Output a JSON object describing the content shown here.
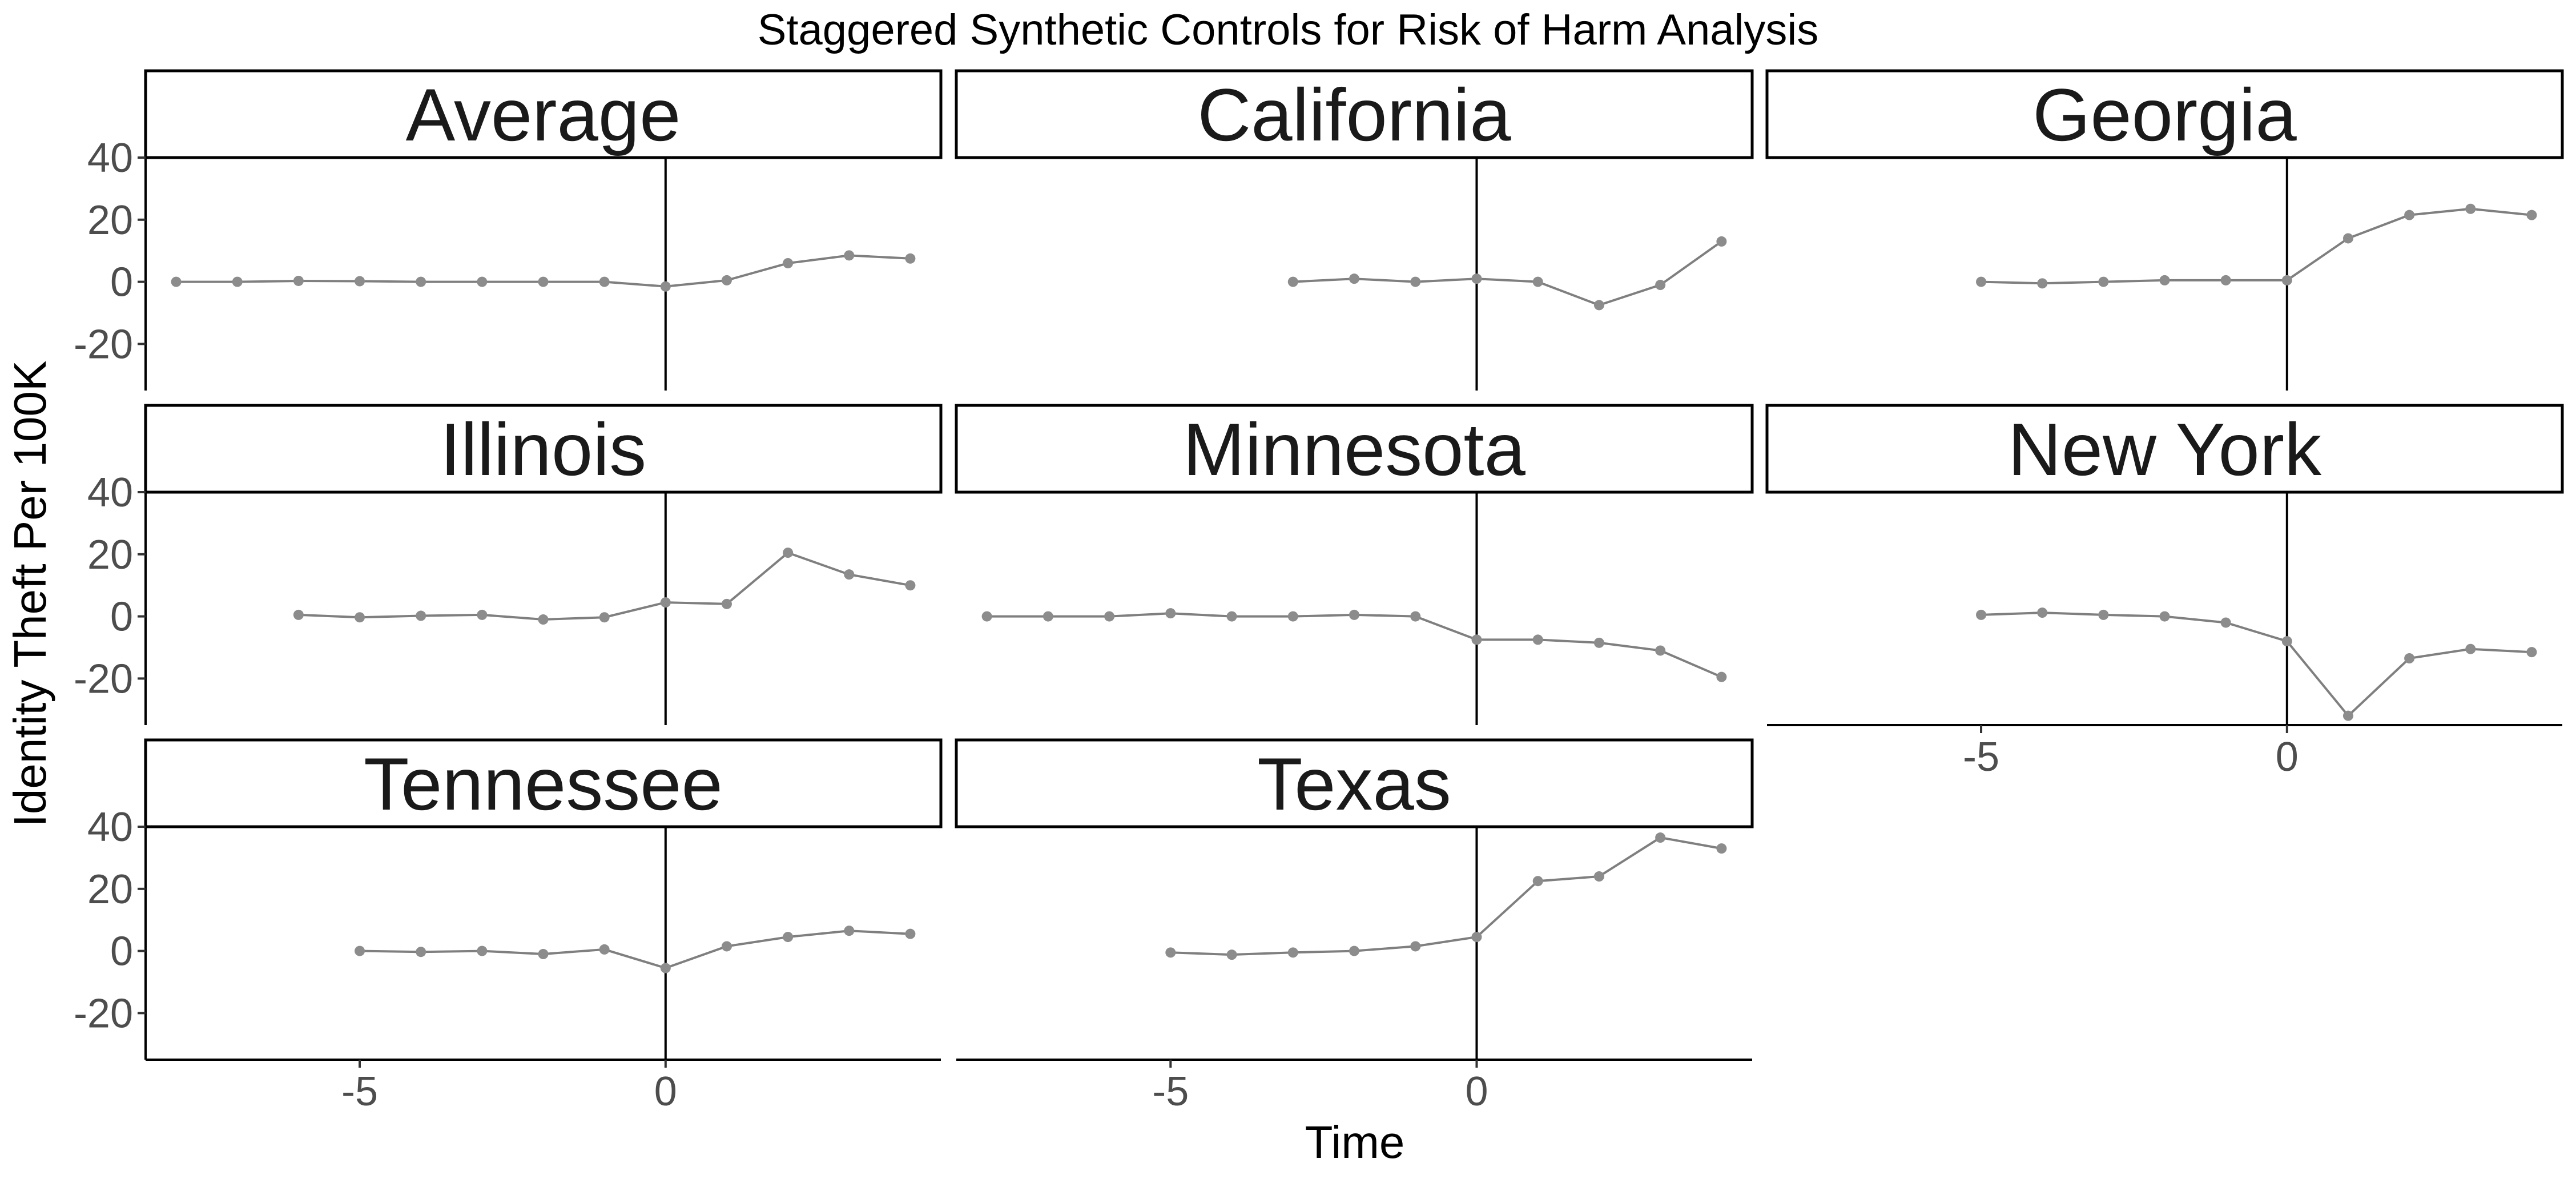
{
  "chart_data": {
    "type": "line",
    "title": "Staggered Synthetic Controls for Risk of Harm Analysis",
    "xlabel": "Time",
    "ylabel": "Identity Theft Per 100K",
    "xlim": [
      -8.5,
      4.5
    ],
    "ylim": [
      -35,
      40
    ],
    "xticks": [
      -5,
      0
    ],
    "yticks": [
      -20,
      0,
      20,
      40
    ],
    "vline_x": 0,
    "grid": false,
    "colors": {
      "line": "#7f7f7f",
      "point": "#8c8c8c",
      "vline": "#000000"
    },
    "panels": [
      {
        "name": "Average",
        "x": [
          -8,
          -7,
          -6,
          -5,
          -4,
          -3,
          -2,
          -1,
          0,
          1,
          2,
          3,
          4
        ],
        "y": [
          0,
          0,
          0.3,
          0.2,
          0,
          0,
          0,
          0,
          -1.5,
          0.5,
          6,
          8.5,
          7.5
        ]
      },
      {
        "name": "California",
        "x": [
          -3,
          -2,
          -1,
          0,
          1,
          2,
          3,
          4
        ],
        "y": [
          0,
          1,
          0,
          1,
          0,
          -7.5,
          -1,
          13
        ]
      },
      {
        "name": "Georgia",
        "x": [
          -5,
          -4,
          -3,
          -2,
          -1,
          0,
          1,
          2,
          3,
          4
        ],
        "y": [
          0,
          -0.5,
          0,
          0.5,
          0.5,
          0.5,
          14,
          21.5,
          23.5,
          21.5
        ]
      },
      {
        "name": "Illinois",
        "x": [
          -6,
          -5,
          -4,
          -3,
          -2,
          -1,
          0,
          1,
          2,
          3,
          4
        ],
        "y": [
          0.5,
          -0.3,
          0.2,
          0.5,
          -1,
          -0.3,
          4.5,
          4,
          20.5,
          13.5,
          10
        ]
      },
      {
        "name": "Minnesota",
        "x": [
          -8,
          -7,
          -6,
          -5,
          -4,
          -3,
          -2,
          -1,
          0,
          1,
          2,
          3,
          4
        ],
        "y": [
          0,
          0,
          0,
          1,
          0,
          0,
          0.5,
          0,
          -7.5,
          -7.5,
          -8.5,
          -11,
          -19.5
        ]
      },
      {
        "name": "New York",
        "x": [
          -5,
          -4,
          -3,
          -2,
          -1,
          0,
          1,
          2,
          3,
          4
        ],
        "y": [
          0.5,
          1.2,
          0.5,
          0,
          -2,
          -8,
          -32,
          -13.5,
          -10.5,
          -11.5
        ]
      },
      {
        "name": "Tennessee",
        "x": [
          -5,
          -4,
          -3,
          -2,
          -1,
          0,
          1,
          2,
          3,
          4
        ],
        "y": [
          0,
          -0.3,
          0,
          -1,
          0.5,
          -5.5,
          1.5,
          4.5,
          6.5,
          5.5
        ]
      },
      {
        "name": "Texas",
        "x": [
          -5,
          -4,
          -3,
          -2,
          -1,
          0,
          1,
          2,
          3,
          4
        ],
        "y": [
          -0.5,
          -1.2,
          -0.5,
          0,
          1.5,
          4.5,
          22.5,
          24,
          36.5,
          33
        ]
      }
    ]
  }
}
